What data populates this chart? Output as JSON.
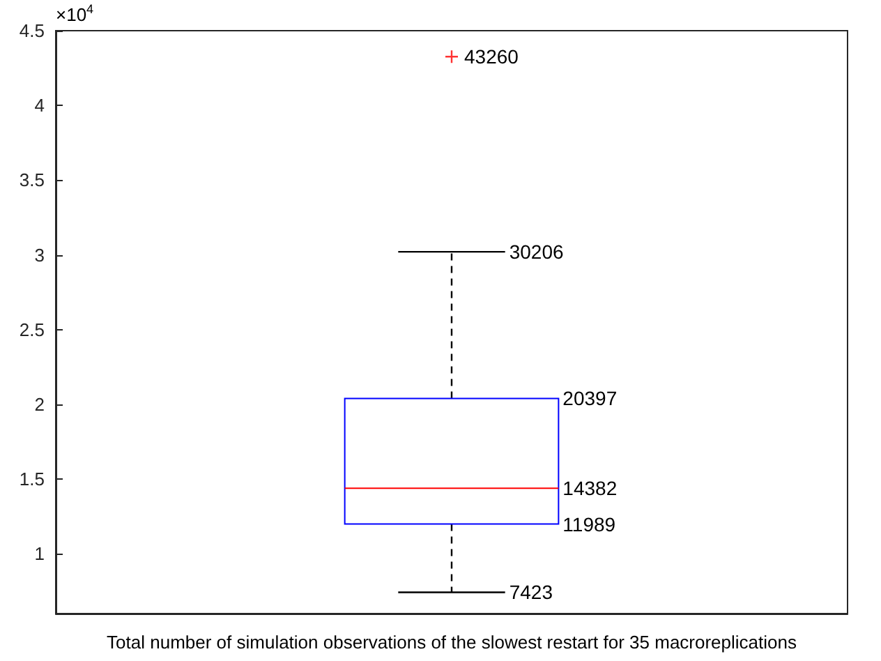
{
  "chart_data": {
    "type": "box",
    "xlabel": "Total number of simulation observations of the slowest restart for 35 macroreplications",
    "categories": [
      null
    ],
    "series": [
      {
        "color": "#0000ff",
        "boxes": [
          {
            "low": 0.7423,
            "q1": 1.1989,
            "median": 1.4382,
            "q3": 2.0397,
            "high": 3.0206,
            "outliers": [
              4.326
            ]
          }
        ]
      }
    ],
    "annotations": [
      "×10$^{4}$",
      "7423",
      "11989",
      "14382",
      "20397",
      "30206",
      "43260"
    ],
    "ylim": [
      0.6,
      4.5
    ],
    "yticks": [
      1,
      1.5,
      2,
      2.5,
      3,
      3.5,
      4,
      4.5
    ],
    "grid": false
  }
}
